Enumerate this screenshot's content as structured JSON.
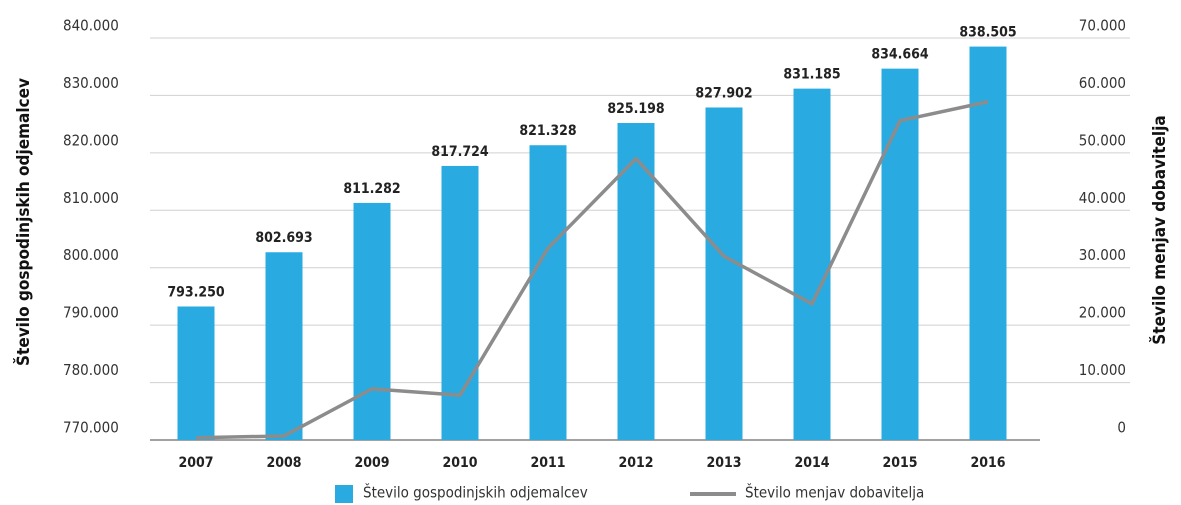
{
  "chart_data": {
    "type": "bar",
    "categories": [
      "2007",
      "2008",
      "2009",
      "2010",
      "2011",
      "2012",
      "2013",
      "2014",
      "2015",
      "2016"
    ],
    "series": [
      {
        "name": "Število gospodinjskih odjemalcev",
        "color": "#29abe2",
        "type": "bar",
        "values": [
          793250,
          802693,
          811282,
          817724,
          821328,
          825198,
          827902,
          831185,
          834664,
          838505
        ],
        "value_labels": [
          "793.250",
          "802.693",
          "811.282",
          "817.724",
          "821.328",
          "825.198",
          "827.902",
          "831.185",
          "834.664",
          "838.505"
        ]
      },
      {
        "name": "Število menjav dobavitelja",
        "color": "#8c8c8c",
        "type": "line",
        "axis": "y2",
        "values": [
          400,
          700,
          8900,
          7800,
          33400,
          49000,
          32000,
          23700,
          55600,
          58900
        ]
      }
    ],
    "ylabel": "Število gospodinjskih odjemalcev",
    "y2label": "Število menjav dobavitelja",
    "ylim": [
      770000,
      840000
    ],
    "yticks": [
      {
        "value": 770000,
        "label": "770.000"
      },
      {
        "value": 780000,
        "label": "780.000"
      },
      {
        "value": 790000,
        "label": "790.000"
      },
      {
        "value": 800000,
        "label": "800.000"
      },
      {
        "value": 810000,
        "label": "810.000"
      },
      {
        "value": 820000,
        "label": "820.000"
      },
      {
        "value": 830000,
        "label": "830.000"
      },
      {
        "value": 840000,
        "label": "840.000"
      }
    ],
    "y2lim": [
      0,
      70000
    ],
    "y2ticks": [
      0,
      {
        "value": 10000,
        "label": "10.000"
      },
      {
        "value": 20000,
        "label": "20.000"
      },
      {
        "value": 30000,
        "label": "30.000"
      },
      {
        "value": 40000,
        "label": "40.000"
      },
      {
        "value": 50000,
        "label": "50.000"
      },
      {
        "value": 60000,
        "label": "60.000"
      },
      {
        "value": 70000,
        "label": "70.000"
      }
    ],
    "grid": true
  }
}
